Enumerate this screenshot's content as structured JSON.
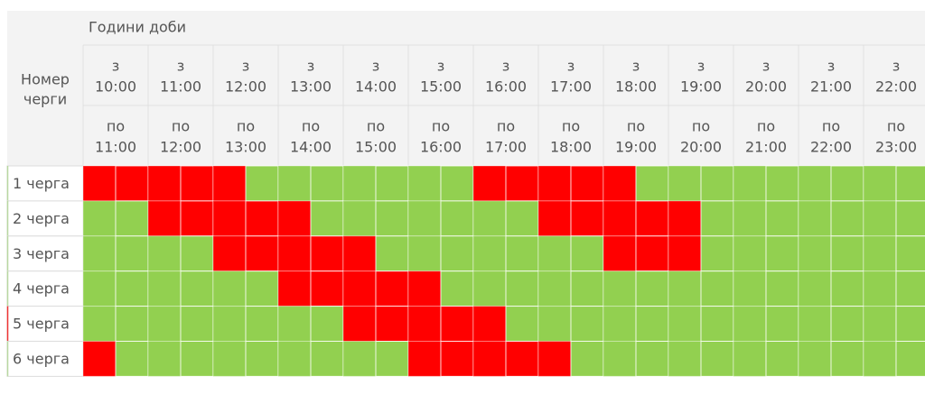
{
  "table": {
    "corner": [
      "Номер",
      "черги"
    ],
    "hours_title": "Години доби",
    "columns": [
      {
        "from": [
          "з",
          "10:00"
        ],
        "to": [
          "по",
          "11:00"
        ]
      },
      {
        "from": [
          "з",
          "11:00"
        ],
        "to": [
          "по",
          "12:00"
        ]
      },
      {
        "from": [
          "з",
          "12:00"
        ],
        "to": [
          "по",
          "13:00"
        ]
      },
      {
        "from": [
          "з",
          "13:00"
        ],
        "to": [
          "по",
          "14:00"
        ]
      },
      {
        "from": [
          "з",
          "14:00"
        ],
        "to": [
          "по",
          "15:00"
        ]
      },
      {
        "from": [
          "з",
          "15:00"
        ],
        "to": [
          "по",
          "16:00"
        ]
      },
      {
        "from": [
          "з",
          "16:00"
        ],
        "to": [
          "по",
          "17:00"
        ]
      },
      {
        "from": [
          "з",
          "17:00"
        ],
        "to": [
          "по",
          "18:00"
        ]
      },
      {
        "from": [
          "з",
          "18:00"
        ],
        "to": [
          "по",
          "19:00"
        ]
      },
      {
        "from": [
          "з",
          "19:00"
        ],
        "to": [
          "по",
          "20:00"
        ]
      },
      {
        "from": [
          "з",
          "20:00"
        ],
        "to": [
          "по",
          "21:00"
        ]
      },
      {
        "from": [
          "з",
          "21:00"
        ],
        "to": [
          "по",
          "22:00"
        ]
      },
      {
        "from": [
          "з",
          "22:00"
        ],
        "to": [
          "по",
          "23:00"
        ]
      }
    ],
    "off_color": "#ff0000",
    "on_color": "#92d050",
    "rows": [
      {
        "label": "1 черга",
        "outage": [
          1,
          1,
          1,
          1,
          1,
          0,
          0,
          0,
          0,
          0,
          0,
          0,
          1,
          1,
          1,
          1,
          1,
          0,
          0,
          0,
          0,
          0,
          0,
          0,
          0,
          0
        ]
      },
      {
        "label": "2 черга",
        "outage": [
          0,
          0,
          1,
          1,
          1,
          1,
          1,
          0,
          0,
          0,
          0,
          0,
          0,
          0,
          1,
          1,
          1,
          1,
          1,
          0,
          0,
          0,
          0,
          0,
          0,
          0
        ]
      },
      {
        "label": "3 черга",
        "outage": [
          0,
          0,
          0,
          0,
          1,
          1,
          1,
          1,
          1,
          0,
          0,
          0,
          0,
          0,
          0,
          0,
          1,
          1,
          1,
          0,
          0,
          0,
          0,
          0,
          0,
          0
        ]
      },
      {
        "label": "4 черга",
        "outage": [
          0,
          0,
          0,
          0,
          0,
          0,
          1,
          1,
          1,
          1,
          1,
          0,
          0,
          0,
          0,
          0,
          0,
          0,
          0,
          0,
          0,
          0,
          0,
          0,
          0,
          0
        ]
      },
      {
        "label": "5 черга",
        "outage": [
          0,
          0,
          0,
          0,
          0,
          0,
          0,
          0,
          1,
          1,
          1,
          1,
          1,
          0,
          0,
          0,
          0,
          0,
          0,
          0,
          0,
          0,
          0,
          0,
          0,
          0
        ]
      },
      {
        "label": "6 черга",
        "outage": [
          1,
          0,
          0,
          0,
          0,
          0,
          0,
          0,
          0,
          0,
          1,
          1,
          1,
          1,
          1,
          0,
          0,
          0,
          0,
          0,
          0,
          0,
          0,
          0,
          0,
          0
        ]
      }
    ]
  }
}
